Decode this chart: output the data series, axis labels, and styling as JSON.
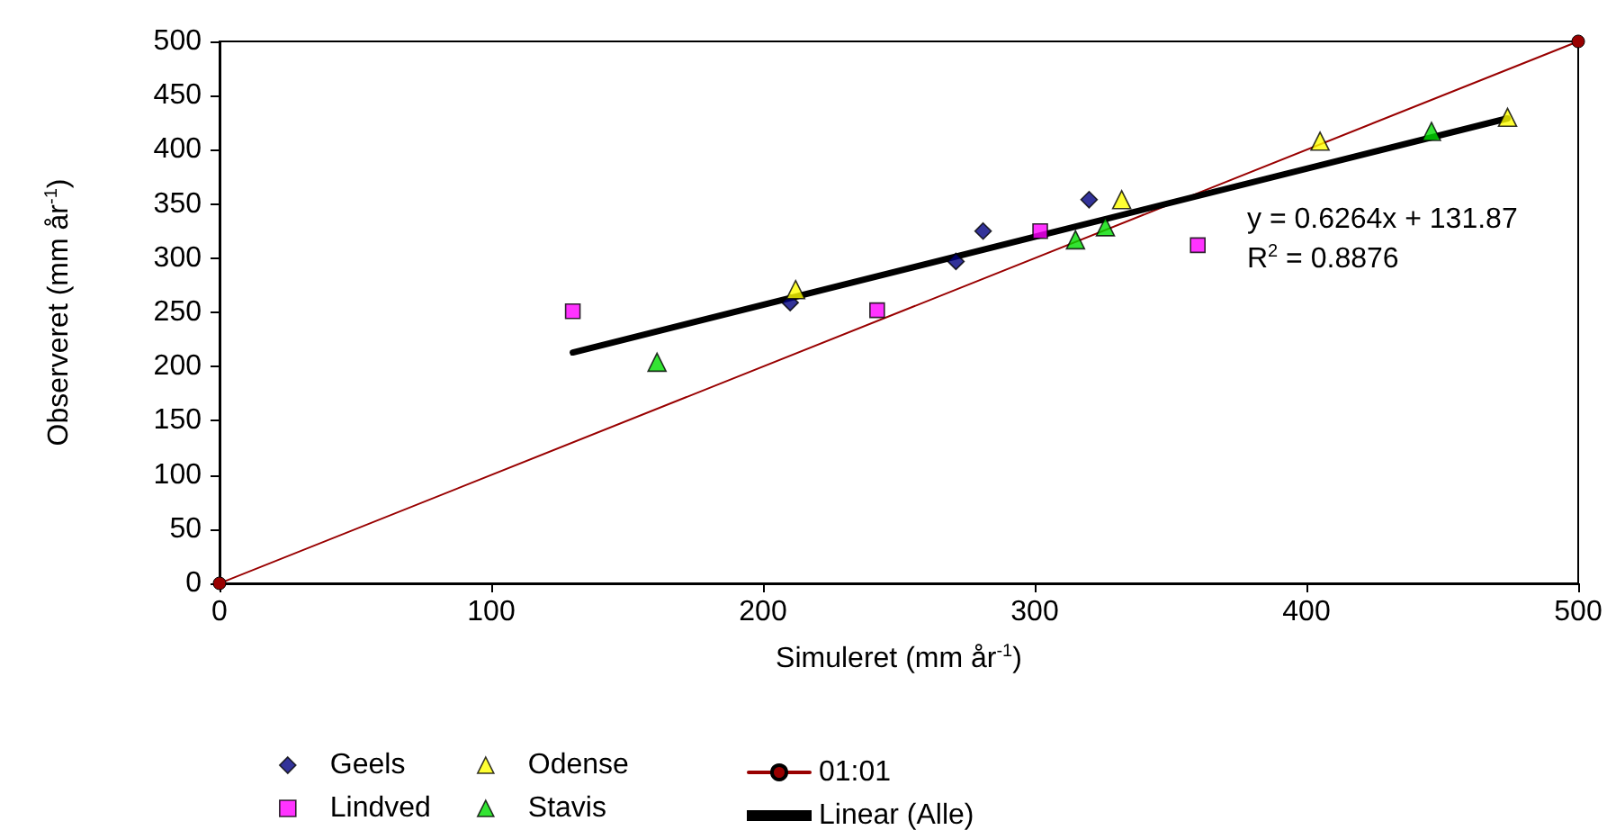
{
  "chart_data": {
    "type": "scatter",
    "xlabel": "Simuleret (mm år$^{-1}$)",
    "ylabel": "Observeret (mm år$^{-1}$)",
    "xlim": [
      0,
      500
    ],
    "xticks": [
      0,
      100,
      200,
      300,
      400,
      500
    ],
    "ylim": [
      0,
      500
    ],
    "yticks": [
      0,
      50,
      100,
      150,
      200,
      250,
      300,
      350,
      400,
      450,
      500
    ],
    "grid": false,
    "legend": "bottom",
    "series": [
      {
        "name": "Geels",
        "color": "#000080",
        "marker": "diamond",
        "x": [
          210,
          271,
          281,
          320
        ],
        "values": [
          259,
          297,
          325,
          354
        ]
      },
      {
        "name": "Lindved",
        "color": "#ff00ff",
        "marker": "square",
        "x": [
          130,
          242,
          302,
          360
        ],
        "values": [
          251,
          252,
          325,
          312
        ]
      },
      {
        "name": "Odense",
        "color": "#ffff00",
        "marker": "triangle",
        "x": [
          212,
          332,
          405,
          474
        ],
        "values": [
          271,
          354,
          408,
          430
        ]
      },
      {
        "name": "Stavis",
        "color": "#00dd00",
        "marker": "triangle",
        "x": [
          161,
          315,
          326,
          446
        ],
        "values": [
          204,
          317,
          329,
          417
        ]
      },
      {
        "name": "01:01",
        "type": "line",
        "color": "#990000",
        "marker": "circle",
        "line_style": "solid",
        "x": [
          0,
          500
        ],
        "values": [
          0,
          500
        ]
      },
      {
        "name": "Linear (Alle)",
        "type": "line",
        "color": "#000000",
        "marker": "none",
        "line_style": "solid",
        "x": [
          130,
          474
        ],
        "values": [
          213,
          429
        ]
      }
    ],
    "annotations": [
      "y = 0.6264x + 131.87",
      "R$^{2}$ = 0.8876"
    ]
  }
}
